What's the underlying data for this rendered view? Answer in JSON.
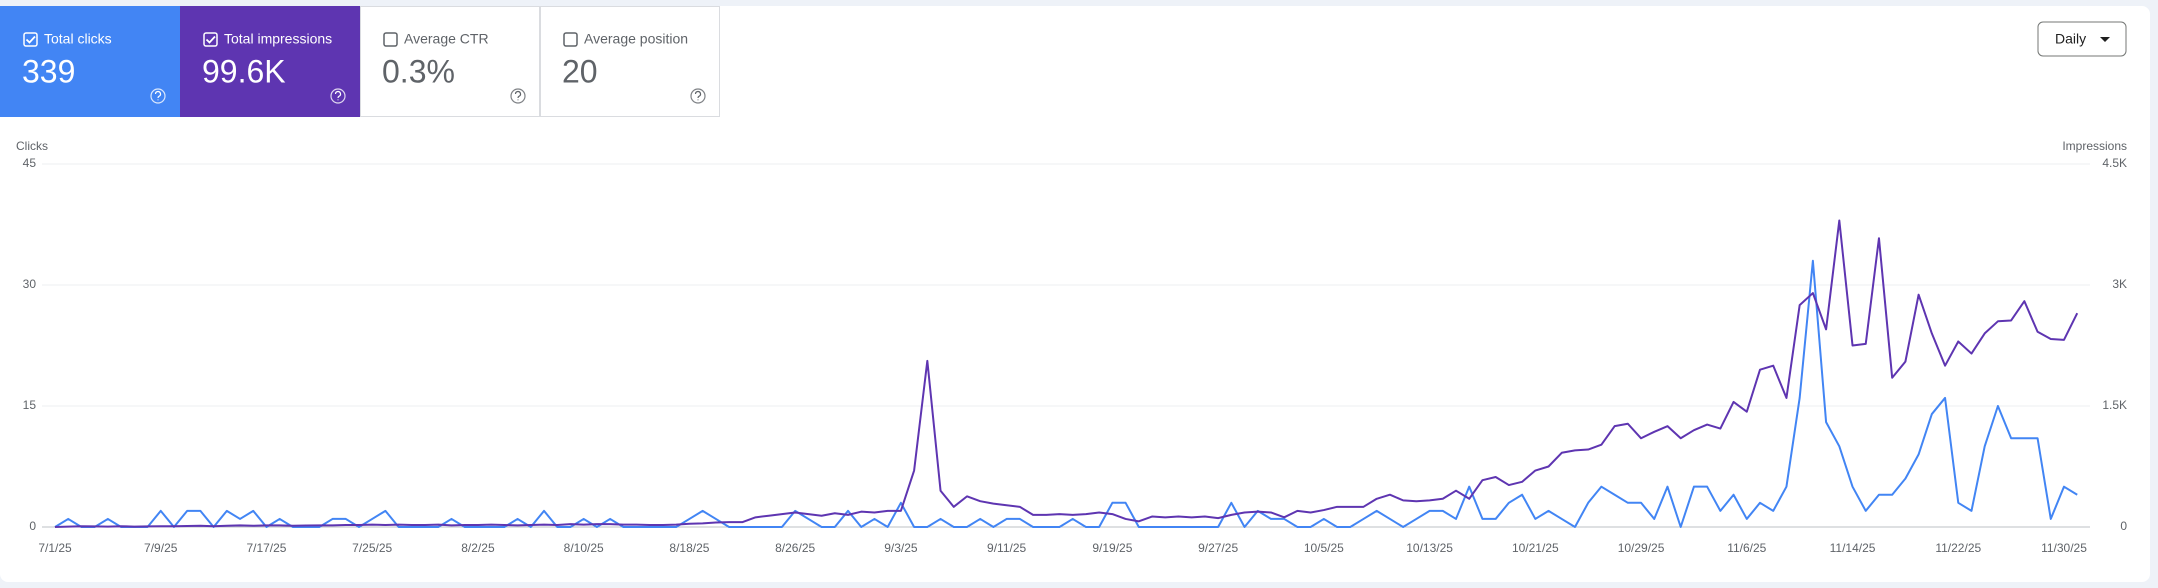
{
  "interval": "Daily",
  "metrics": [
    {
      "label": "Total clicks",
      "value": 339,
      "checked": true,
      "color": "#4285f4"
    },
    {
      "label": "Total impressions",
      "value": "99.6K",
      "checked": true,
      "color": "#5e35b1"
    },
    {
      "label": "Average CTR",
      "value": "0.3%",
      "checked": false,
      "color": "#ffffff"
    },
    {
      "label": "Average position",
      "value": 20,
      "checked": false,
      "color": "#ffffff"
    }
  ],
  "chart_data": {
    "type": "line",
    "y_label": "Clicks",
    "y2_label": "Impressions",
    "grid": true,
    "categories": [
      "7/1/25",
      null,
      null,
      null,
      null,
      null,
      null,
      null,
      "7/9/25",
      null,
      null,
      null,
      null,
      null,
      null,
      null,
      "7/17/25",
      null,
      null,
      null,
      null,
      null,
      null,
      null,
      "7/25/25",
      null,
      null,
      null,
      null,
      null,
      null,
      null,
      "8/2/25",
      null,
      null,
      null,
      null,
      null,
      null,
      null,
      "8/10/25",
      null,
      null,
      null,
      null,
      null,
      null,
      null,
      "8/18/25",
      null,
      null,
      null,
      null,
      null,
      null,
      null,
      "8/26/25",
      null,
      null,
      null,
      null,
      null,
      null,
      null,
      "9/3/25",
      null,
      null,
      null,
      null,
      null,
      null,
      null,
      "9/11/25",
      null,
      null,
      null,
      null,
      null,
      null,
      null,
      "9/19/25",
      null,
      null,
      null,
      null,
      null,
      null,
      null,
      "9/27/25",
      null,
      null,
      null,
      null,
      null,
      null,
      null,
      "10/5/25",
      null,
      null,
      null,
      null,
      null,
      null,
      null,
      "10/13/25",
      null,
      null,
      null,
      null,
      null,
      null,
      null,
      "10/21/25",
      null,
      null,
      null,
      null,
      null,
      null,
      null,
      "10/29/25",
      null,
      null,
      null,
      null,
      null,
      null,
      null,
      "11/6/25",
      null,
      null,
      null,
      null,
      null,
      null,
      null,
      "11/14/25",
      null,
      null,
      null,
      null,
      null,
      null,
      null,
      "11/22/25",
      null,
      null,
      null,
      null,
      null,
      null,
      null,
      "11/30/25",
      null
    ],
    "ylim": [
      0,
      45
    ],
    "yticks": [
      0,
      15,
      30,
      45
    ],
    "y2lim": [
      0,
      4500
    ],
    "y2ticks": [
      0,
      {
        "value": 1500,
        "label": "1.5K"
      },
      {
        "value": 3000,
        "label": "3K"
      },
      {
        "value": 4500,
        "label": "4.5K"
      }
    ],
    "series": [
      {
        "name": "Clicks",
        "color": "#4285f4",
        "values": [
          0,
          1,
          0,
          0,
          1,
          0,
          0,
          0,
          2,
          0,
          2,
          2,
          0,
          2,
          1,
          2,
          0,
          1,
          0,
          0,
          0,
          1,
          1,
          0,
          1,
          2,
          0,
          0,
          0,
          0,
          1,
          0,
          0,
          0,
          0,
          1,
          0,
          2,
          0,
          0,
          1,
          0,
          1,
          0,
          0,
          0,
          0,
          0,
          1,
          2,
          1,
          0,
          0,
          0,
          0,
          0,
          2,
          1,
          0,
          0,
          2,
          0,
          1,
          0,
          3,
          0,
          0,
          1,
          0,
          0,
          1,
          0,
          1,
          1,
          0,
          0,
          0,
          1,
          0,
          0,
          3,
          3,
          0,
          0,
          0,
          0,
          0,
          0,
          0,
          3,
          0,
          2,
          1,
          1,
          0,
          0,
          1,
          0,
          0,
          1,
          2,
          1,
          0,
          1,
          2,
          2,
          1,
          5,
          1,
          1,
          3,
          4,
          1,
          2,
          1,
          0,
          3,
          5,
          4,
          3,
          3,
          1,
          5,
          0,
          5,
          5,
          2,
          4,
          1,
          3,
          2,
          5,
          16,
          33,
          13,
          10,
          5,
          2,
          4,
          4,
          6,
          9,
          14,
          16,
          3,
          2,
          10,
          15,
          11,
          11,
          11,
          1,
          5,
          4
        ]
      },
      {
        "name": "Impressions",
        "color": "#5e35b1",
        "axis": "y2",
        "values": [
          0,
          5,
          10,
          8,
          5,
          10,
          5,
          8,
          10,
          10,
          12,
          15,
          10,
          15,
          20,
          15,
          20,
          20,
          15,
          18,
          20,
          20,
          25,
          25,
          30,
          25,
          30,
          25,
          25,
          30,
          20,
          25,
          25,
          30,
          25,
          20,
          25,
          30,
          25,
          35,
          30,
          35,
          35,
          30,
          30,
          25,
          25,
          30,
          40,
          45,
          55,
          60,
          60,
          120,
          140,
          160,
          180,
          160,
          140,
          170,
          150,
          190,
          180,
          200,
          200,
          700,
          2060,
          450,
          250,
          380,
          320,
          290,
          270,
          250,
          150,
          150,
          160,
          150,
          160,
          180,
          160,
          100,
          70,
          130,
          120,
          130,
          120,
          130,
          110,
          150,
          180,
          190,
          180,
          120,
          200,
          180,
          210,
          250,
          250,
          250,
          350,
          400,
          330,
          320,
          330,
          350,
          450,
          350,
          580,
          620,
          520,
          560,
          700,
          750,
          920,
          950,
          960,
          1020,
          1250,
          1280,
          1100,
          1180,
          1250,
          1100,
          1200,
          1270,
          1220,
          1550,
          1430,
          1950,
          2000,
          1600,
          2750,
          2900,
          2450,
          3800,
          2250,
          2270,
          3580,
          1850,
          2050,
          2880,
          2400,
          2000,
          2300,
          2150,
          2400,
          2550,
          2560,
          2800,
          2420,
          2330,
          2320,
          2650
        ]
      }
    ]
  }
}
